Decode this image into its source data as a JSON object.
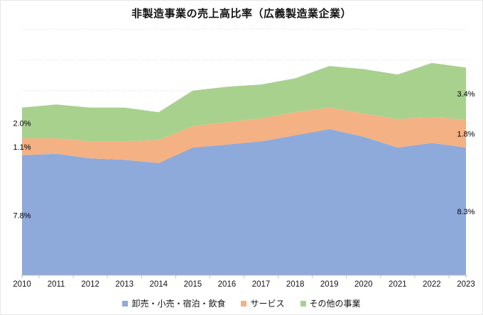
{
  "chart_data": {
    "type": "area",
    "stacked": true,
    "title": "非製造事業の売上高比率（広義製造業企業）",
    "x": [
      "2010",
      "2011",
      "2012",
      "2013",
      "2014",
      "2015",
      "2016",
      "2017",
      "2018",
      "2019",
      "2020",
      "2021",
      "2022",
      "2023"
    ],
    "series": [
      {
        "name": "卸売・小売・宿泊・飲食",
        "color": "#8EAADB",
        "values": [
          7.8,
          7.9,
          7.6,
          7.5,
          7.3,
          8.3,
          8.5,
          8.7,
          9.1,
          9.5,
          9.0,
          8.3,
          8.6,
          8.3
        ],
        "first_label": "7.8%",
        "last_label": "8.3%"
      },
      {
        "name": "サービス",
        "color": "#F4B183",
        "values": [
          1.1,
          1.0,
          1.1,
          1.2,
          1.5,
          1.4,
          1.45,
          1.5,
          1.5,
          1.4,
          1.5,
          1.85,
          1.7,
          1.8
        ],
        "first_label": "1.1%",
        "last_label": "1.8%"
      },
      {
        "name": "その他の事業",
        "color": "#A9D18E",
        "values": [
          2.0,
          2.2,
          2.2,
          2.2,
          1.8,
          2.3,
          2.3,
          2.2,
          2.2,
          2.7,
          2.9,
          2.9,
          3.5,
          3.4
        ],
        "first_label": "2.0%",
        "last_label": "3.4%"
      }
    ],
    "ylim": [
      0,
      16
    ],
    "grid_step": 2,
    "grid": true,
    "grid_style": "dotted",
    "y_axis_labels_visible": false,
    "legend_position": "bottom",
    "axis_color": "#BFBFBF",
    "grid_color": "#DADADA",
    "xlabel": "",
    "ylabel": ""
  }
}
